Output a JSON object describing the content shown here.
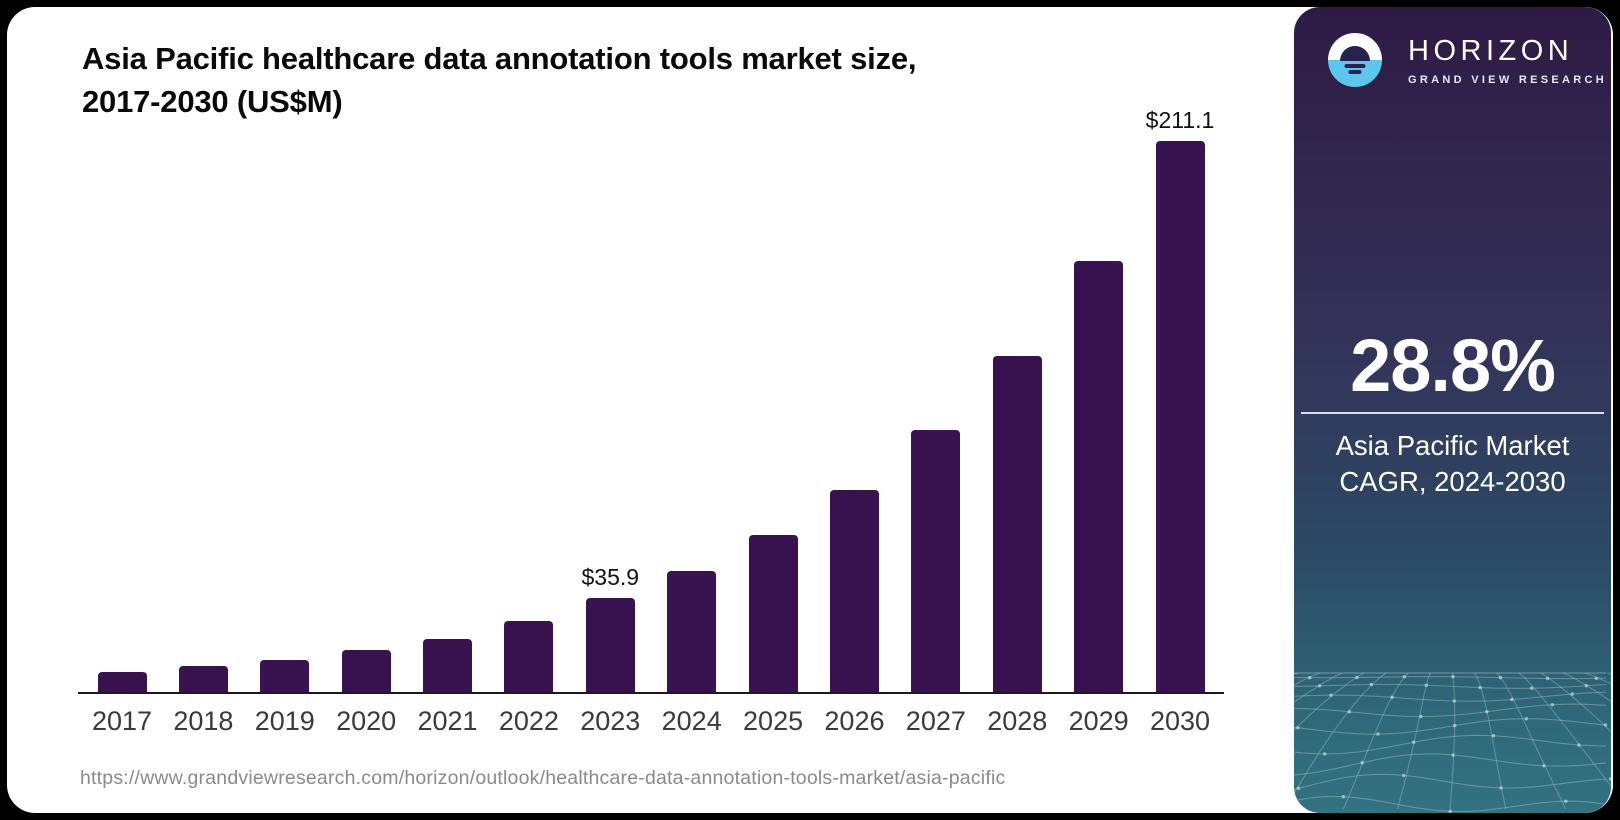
{
  "title": {
    "line1": "Asia Pacific healthcare data annotation tools market size,",
    "line2": "2017-2030 (US$M)"
  },
  "footer": {
    "source_url": "https://www.grandviewresearch.com/horizon/outlook/healthcare-data-annotation-tools-market/asia-pacific"
  },
  "sidebar": {
    "brand": "HORIZON",
    "brand_sub": "GRAND VIEW RESEARCH",
    "logo_icon": "sun-over-horizon-icon",
    "stat_value": "28.8%",
    "caption_line1": "Asia Pacific Market",
    "caption_line2": "CAGR, 2024-2030",
    "colors": {
      "top": "#2e1a45",
      "bottom": "#337281",
      "logo_blue": "#5bc7ec"
    }
  },
  "chart_data": {
    "type": "bar",
    "title": "Asia Pacific healthcare data annotation tools market size, 2017-2030 (US$M)",
    "categories": [
      "2017",
      "2018",
      "2019",
      "2020",
      "2021",
      "2022",
      "2023",
      "2024",
      "2025",
      "2026",
      "2027",
      "2028",
      "2029",
      "2030"
    ],
    "values": [
      7.7,
      10.0,
      12.3,
      16.1,
      20.3,
      27.2,
      35.9,
      46.3,
      60.0,
      77.2,
      100.3,
      128.7,
      165.0,
      211.1
    ],
    "point_labels": {
      "2023": "$35.9",
      "2030": "$211.1"
    },
    "bar_color": "#38134f",
    "xlabel": "",
    "ylabel": "US$M",
    "ylim": [
      0,
      211.1
    ],
    "grid": false,
    "legend": false,
    "axes_shown": "x-only"
  }
}
